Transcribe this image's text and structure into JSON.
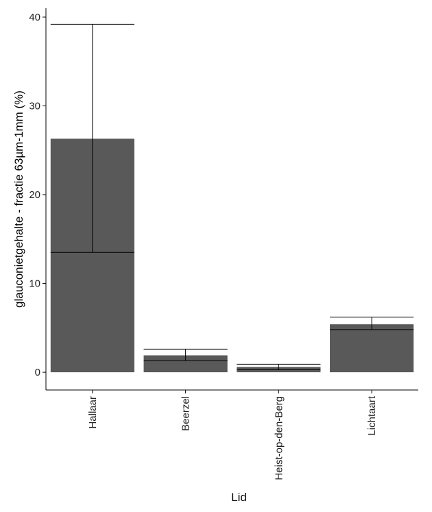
{
  "chart_data": {
    "type": "bar",
    "title": "",
    "xlabel": "Lid",
    "ylabel": "glauconietgehalte - fractie 63µm-1mm (%)",
    "categories": [
      "Hallaar",
      "Beerzel",
      "Heist-op-den-Berg",
      "Lichtaart"
    ],
    "values": [
      26.3,
      1.9,
      0.6,
      5.4
    ],
    "error_low": [
      13.5,
      1.3,
      0.3,
      4.8
    ],
    "error_high": [
      39.2,
      2.6,
      0.9,
      6.2
    ],
    "ylim": [
      -2,
      41
    ],
    "yticks": [
      0,
      10,
      20,
      30,
      40
    ],
    "grid": false,
    "legend": "none",
    "bar_color": "#595959",
    "errorbar_color": "#000000",
    "axis_color": "#000000"
  }
}
